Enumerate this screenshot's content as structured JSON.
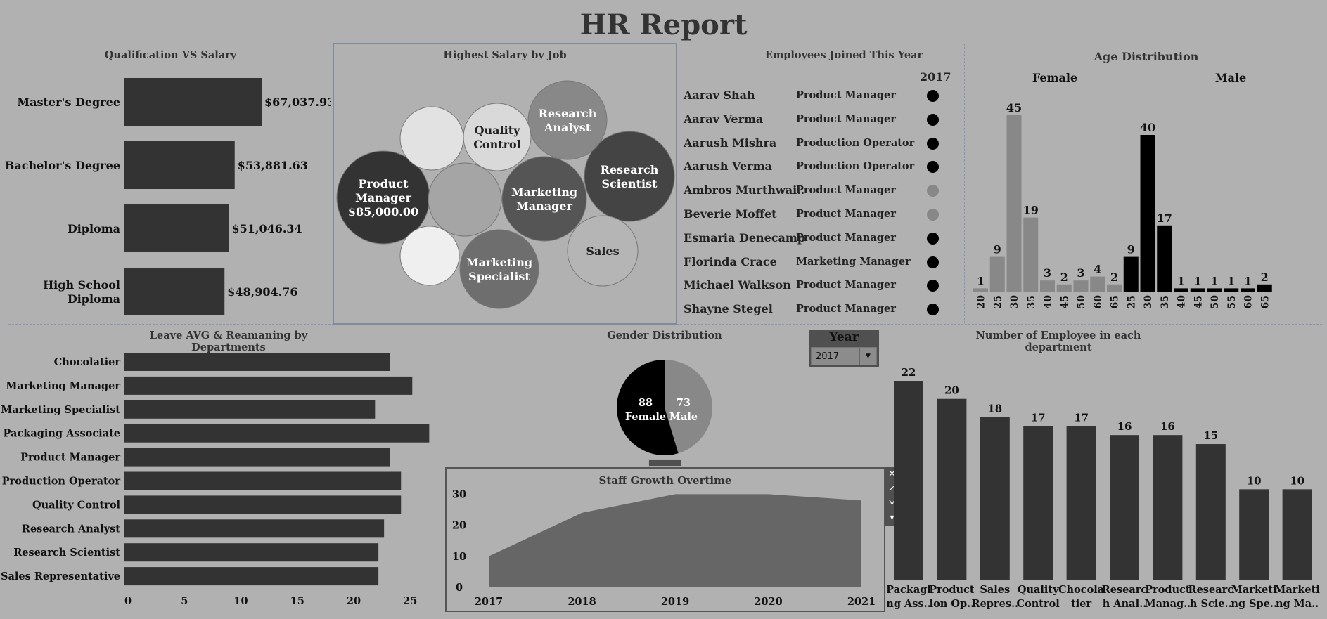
{
  "title": "HR Report",
  "colors": {
    "background": "#b1b1b1",
    "bar": "#333333",
    "female": "#888888",
    "male": "#000000",
    "bubble_dark": "#333333",
    "area": "#666666"
  },
  "panels": {
    "qualification_title": "Qualification VS Salary",
    "bubble_title": "Highest Salary by Job",
    "employees_title": "Employees Joined This Year",
    "age_title": "Age Distribution",
    "leave_title": "Leave AVG & Reamaning by Departments",
    "gender_title": "Gender Distribution",
    "dept_title": "Number of Employee in each department",
    "staff_title": "Staff Growth Overtime"
  },
  "year_filter": {
    "label": "Year",
    "value": "2017"
  },
  "employees": {
    "year_header": "2017",
    "rows": [
      {
        "name": "Aarav Shah",
        "job": "Product Manager",
        "dot": "#000000"
      },
      {
        "name": "Aarav Verma",
        "job": "Product Manager",
        "dot": "#000000"
      },
      {
        "name": "Aarush Mishra",
        "job": "Production Operator",
        "dot": "#000000"
      },
      {
        "name": "Aarush Verma",
        "job": "Production Operator",
        "dot": "#000000"
      },
      {
        "name": "Ambros Murthwai..",
        "job": "Product Manager",
        "dot": "#888888"
      },
      {
        "name": "Beverie Moffet",
        "job": "Product Manager",
        "dot": "#888888"
      },
      {
        "name": "Esmaria Denecamp",
        "job": "Product Manager",
        "dot": "#000000"
      },
      {
        "name": "Florinda Crace",
        "job": "Marketing Manager",
        "dot": "#000000"
      },
      {
        "name": "Michael Walkson",
        "job": "Product Manager",
        "dot": "#000000"
      },
      {
        "name": "Shayne Stegel",
        "job": "Product Manager",
        "dot": "#000000"
      }
    ]
  },
  "chart_data": [
    {
      "id": "qualification",
      "type": "bar",
      "orientation": "horizontal",
      "title": "Qualification VS Salary",
      "categories": [
        [
          "Master's Degree"
        ],
        [
          "Bachelor's Degree"
        ],
        [
          "Diploma"
        ],
        [
          "High School",
          "Diploma"
        ]
      ],
      "values": [
        67037.93,
        53881.63,
        51046.34,
        48904.76
      ],
      "labels": [
        "$67,037.93",
        "$53,881.63",
        "$51,046.34",
        "$48,904.76"
      ]
    },
    {
      "id": "bubbles",
      "type": "bubble",
      "title": "Highest Salary by Job",
      "items": [
        {
          "lines": [
            "Product",
            "Manager",
            "$85,000.00"
          ],
          "value": 85000,
          "color": "#333333"
        },
        {
          "lines": [
            "Research",
            "Scientist"
          ],
          "color": "#444444"
        },
        {
          "lines": [
            "Marketing",
            "Manager"
          ],
          "color": "#555555"
        },
        {
          "lines": [
            "Marketing",
            "Specialist"
          ],
          "color": "#6e6e6e"
        },
        {
          "lines": [
            "Research",
            "Analyst"
          ],
          "color": "#888888"
        },
        {
          "lines": [
            "Sales"
          ],
          "color": "#b5b5b5"
        },
        {
          "lines": [
            "Quality",
            "Control"
          ],
          "color": "#d9d9d9"
        },
        {
          "lines": [],
          "color": "#a5a5a5"
        },
        {
          "lines": [],
          "color": "#e2e2e2"
        },
        {
          "lines": [],
          "color": "#efefef"
        }
      ]
    },
    {
      "id": "age",
      "type": "bar",
      "title": "Age Distribution",
      "series": [
        {
          "name": "Female",
          "color": "#888888",
          "x": [
            "20",
            "25",
            "30",
            "35",
            "40",
            "45",
            "50",
            "60",
            "65"
          ],
          "values": [
            1,
            9,
            45,
            19,
            3,
            2,
            3,
            4,
            2
          ]
        },
        {
          "name": "Male",
          "color": "#000000",
          "x": [
            "25",
            "30",
            "35",
            "40",
            "45",
            "50",
            "55",
            "60",
            "65"
          ],
          "values": [
            9,
            40,
            17,
            1,
            1,
            1,
            1,
            1,
            2
          ]
        }
      ]
    },
    {
      "id": "leave",
      "type": "bar",
      "orientation": "horizontal",
      "title": "Leave AVG & Reamaning by Departments",
      "categories": [
        "Chocolatier",
        "Marketing Manager",
        "Marketing Specialist",
        "Packaging Associate",
        "Product Manager",
        "Production Operator",
        "Quality Control",
        "Research Analyst",
        "Research Scientist",
        "Sales Representative"
      ],
      "values": [
        23.5,
        25.5,
        22.2,
        27,
        23.5,
        24.5,
        24.5,
        23,
        22.5,
        22.5
      ],
      "ticks": [
        "0",
        "5",
        "10",
        "15",
        "20",
        "25"
      ],
      "xlim": [
        0,
        27
      ]
    },
    {
      "id": "gender",
      "type": "pie",
      "title": "Gender Distribution",
      "slices": [
        {
          "name": "Female",
          "value": 88,
          "color": "#000000"
        },
        {
          "name": "Male",
          "value": 73,
          "color": "#888888"
        }
      ]
    },
    {
      "id": "staff",
      "type": "area",
      "title": "Staff Growth Overtime",
      "x": [
        "2017",
        "2018",
        "2019",
        "2020",
        "2021"
      ],
      "values": [
        10,
        24,
        30,
        30,
        28
      ],
      "yticks": [
        "0",
        "10",
        "20",
        "30"
      ],
      "ylim": [
        0,
        31
      ]
    },
    {
      "id": "dept",
      "type": "bar",
      "title": "Number of Employee in each department",
      "categories": [
        [
          "Packagi",
          "ng Ass.."
        ],
        [
          "Product",
          "ion Op.."
        ],
        [
          "Sales",
          "Repres.."
        ],
        [
          "Quality",
          "Control"
        ],
        [
          "Chocola",
          "tier"
        ],
        [
          "Researc",
          "h Anal.."
        ],
        [
          "Product",
          "Manag.."
        ],
        [
          "Researc",
          "h Scie.."
        ],
        [
          "Marketi",
          "ng Spe.."
        ],
        [
          "Marketi",
          "ng Ma.."
        ]
      ],
      "values": [
        22,
        20,
        18,
        17,
        17,
        16,
        16,
        15,
        10,
        10
      ],
      "ylim": [
        0,
        22
      ]
    }
  ]
}
